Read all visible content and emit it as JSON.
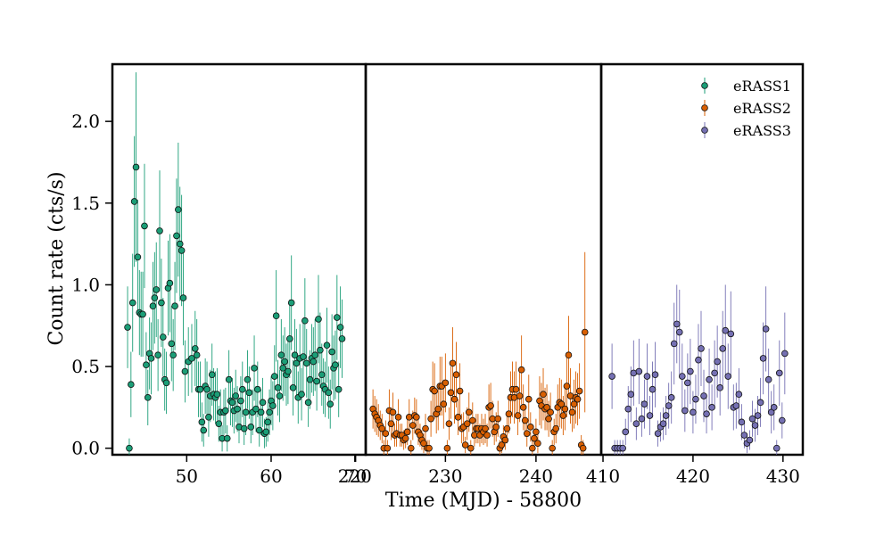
{
  "chart_data": {
    "type": "scatter",
    "xlabel": "Time (MJD) - 58800",
    "ylabel": "Count rate (cts/s)",
    "ylim": [
      -0.04,
      2.35
    ],
    "yticks": [
      0.0,
      0.5,
      1.0,
      1.5,
      2.0
    ],
    "ytick_labels": [
      "0.0",
      "0.5",
      "1.0",
      "1.5",
      "2.0"
    ],
    "legend_position": "top-right",
    "grid": false,
    "error_bars": "vertical",
    "panels": [
      {
        "xlim": [
          41.2,
          71.2
        ],
        "xticks": [
          50,
          60,
          70
        ],
        "xtick_labels": [
          "50",
          "60",
          "70"
        ]
      },
      {
        "xlim": [
          221.2,
          247.2
        ],
        "xticks": [
          220,
          230,
          240
        ],
        "xtick_labels": [
          "220",
          "230",
          "240"
        ]
      },
      {
        "xlim": [
          409.8,
          432.2
        ],
        "xticks": [
          410,
          420,
          430
        ],
        "xtick_labels": [
          "410",
          "420",
          "430"
        ]
      }
    ],
    "series": [
      {
        "name": "eRASS1",
        "color": "#1b9e77",
        "panel": 0,
        "x": [
          43.0,
          43.2,
          43.4,
          43.6,
          43.8,
          44.0,
          44.2,
          44.4,
          44.6,
          44.8,
          45.0,
          45.2,
          45.4,
          45.6,
          45.8,
          46.0,
          46.2,
          46.4,
          46.6,
          46.8,
          47.0,
          47.2,
          47.4,
          47.6,
          47.8,
          48.0,
          48.2,
          48.4,
          48.6,
          48.8,
          49.0,
          49.2,
          49.4,
          49.6,
          49.8,
          50.2,
          50.6,
          51.0,
          51.2,
          51.4,
          51.6,
          51.8,
          52.0,
          52.2,
          52.4,
          52.6,
          52.8,
          53.0,
          53.2,
          53.4,
          53.6,
          53.8,
          54.0,
          54.2,
          54.4,
          54.6,
          54.8,
          55.0,
          55.2,
          55.4,
          55.6,
          55.8,
          56.0,
          56.2,
          56.4,
          56.6,
          56.8,
          57.0,
          57.2,
          57.4,
          57.6,
          57.8,
          58.0,
          58.2,
          58.4,
          58.6,
          58.8,
          59.0,
          59.2,
          59.4,
          59.6,
          59.8,
          60.0,
          60.2,
          60.4,
          60.6,
          60.8,
          61.0,
          61.2,
          61.4,
          61.6,
          61.8,
          62.0,
          62.2,
          62.4,
          62.6,
          62.8,
          63.0,
          63.2,
          63.4,
          63.6,
          63.8,
          64.0,
          64.2,
          64.4,
          64.6,
          64.8,
          65.0,
          65.2,
          65.4,
          65.6,
          65.8,
          66.0,
          66.2,
          66.4,
          66.6,
          66.8,
          67.0,
          67.2,
          67.4,
          67.6,
          67.8,
          68.0,
          68.2,
          68.4
        ],
        "y": [
          0.74,
          0.0,
          0.39,
          0.89,
          1.51,
          1.72,
          1.17,
          0.83,
          0.82,
          0.82,
          1.36,
          0.51,
          0.31,
          0.58,
          0.55,
          0.87,
          0.92,
          0.97,
          0.57,
          1.33,
          0.89,
          0.68,
          0.42,
          0.4,
          0.98,
          1.01,
          0.64,
          0.57,
          0.87,
          1.3,
          1.46,
          1.25,
          1.21,
          0.92,
          0.47,
          0.53,
          0.55,
          0.61,
          0.57,
          0.36,
          0.36,
          0.16,
          0.11,
          0.38,
          0.36,
          0.19,
          0.32,
          0.45,
          0.33,
          0.31,
          0.33,
          0.15,
          0.22,
          0.06,
          0.22,
          0.23,
          0.06,
          0.42,
          0.29,
          0.28,
          0.23,
          0.32,
          0.24,
          0.13,
          0.29,
          0.36,
          0.12,
          0.22,
          0.42,
          0.34,
          0.13,
          0.22,
          0.49,
          0.24,
          0.36,
          0.11,
          0.22,
          0.28,
          0.09,
          0.1,
          0.16,
          0.22,
          0.29,
          0.26,
          0.44,
          0.81,
          0.37,
          0.32,
          0.57,
          0.49,
          0.53,
          0.45,
          0.47,
          0.67,
          0.89,
          0.37,
          0.57,
          0.52,
          0.31,
          0.55,
          0.33,
          0.56,
          0.78,
          0.52,
          0.28,
          0.42,
          0.55,
          0.53,
          0.57,
          0.41,
          0.79,
          0.6,
          0.45,
          0.38,
          0.36,
          0.63,
          0.34,
          0.27,
          0.59,
          0.49,
          0.51,
          0.8,
          0.36,
          0.74,
          0.67
        ],
        "yerr": [
          0.25,
          0.06,
          0.2,
          0.3,
          0.4,
          0.58,
          0.35,
          0.26,
          0.26,
          0.26,
          0.38,
          0.2,
          0.17,
          0.22,
          0.22,
          0.27,
          0.28,
          0.29,
          0.22,
          0.37,
          0.27,
          0.24,
          0.19,
          0.19,
          0.29,
          0.3,
          0.23,
          0.22,
          0.27,
          0.35,
          0.41,
          0.35,
          0.34,
          0.29,
          0.19,
          0.21,
          0.21,
          0.23,
          0.22,
          0.17,
          0.17,
          0.12,
          0.1,
          0.17,
          0.17,
          0.12,
          0.16,
          0.19,
          0.16,
          0.16,
          0.16,
          0.11,
          0.14,
          0.08,
          0.14,
          0.14,
          0.08,
          0.18,
          0.15,
          0.15,
          0.14,
          0.16,
          0.14,
          0.1,
          0.15,
          0.17,
          0.1,
          0.14,
          0.18,
          0.16,
          0.1,
          0.14,
          0.2,
          0.14,
          0.17,
          0.1,
          0.14,
          0.15,
          0.09,
          0.09,
          0.12,
          0.14,
          0.15,
          0.15,
          0.19,
          0.28,
          0.17,
          0.16,
          0.22,
          0.2,
          0.21,
          0.19,
          0.2,
          0.24,
          0.29,
          0.17,
          0.22,
          0.21,
          0.16,
          0.21,
          0.16,
          0.22,
          0.26,
          0.21,
          0.15,
          0.18,
          0.21,
          0.21,
          0.22,
          0.18,
          0.27,
          0.23,
          0.19,
          0.17,
          0.17,
          0.23,
          0.16,
          0.15,
          0.23,
          0.2,
          0.21,
          0.26,
          0.17,
          0.25,
          0.24
        ]
      },
      {
        "name": "eRASS2",
        "color": "#d95f02",
        "panel": 1,
        "x": [
          222.0,
          222.2,
          222.4,
          222.6,
          222.8,
          223.0,
          223.2,
          223.4,
          223.6,
          223.8,
          224.0,
          224.2,
          224.4,
          224.6,
          224.8,
          225.0,
          225.2,
          225.4,
          225.6,
          225.8,
          226.0,
          226.2,
          226.4,
          226.6,
          226.8,
          227.0,
          227.2,
          227.4,
          227.6,
          227.8,
          228.0,
          228.2,
          228.4,
          228.6,
          228.8,
          229.0,
          229.2,
          229.4,
          229.6,
          229.8,
          230.0,
          230.2,
          230.4,
          230.6,
          230.8,
          231.0,
          231.2,
          231.4,
          231.6,
          231.8,
          232.0,
          232.2,
          232.4,
          232.6,
          232.8,
          233.0,
          233.2,
          233.4,
          233.6,
          233.8,
          234.0,
          234.2,
          234.4,
          234.6,
          234.8,
          235.0,
          235.2,
          235.4,
          235.6,
          235.8,
          236.0,
          236.2,
          236.4,
          236.6,
          236.8,
          237.0,
          237.2,
          237.4,
          237.6,
          237.8,
          238.0,
          238.2,
          238.4,
          238.6,
          238.8,
          239.0,
          239.2,
          239.4,
          239.6,
          239.8,
          240.0,
          240.2,
          240.4,
          240.6,
          240.8,
          241.0,
          241.2,
          241.4,
          241.6,
          241.8,
          242.0,
          242.2,
          242.4,
          242.6,
          242.8,
          243.0,
          243.2,
          243.4,
          243.6,
          243.8,
          244.0,
          244.2,
          244.4,
          244.6,
          244.8,
          245.0,
          245.2,
          245.4
        ],
        "y": [
          0.24,
          0.21,
          0.19,
          0.17,
          0.14,
          0.12,
          0.0,
          0.09,
          0.0,
          0.23,
          0.15,
          0.22,
          0.08,
          0.09,
          0.19,
          0.08,
          0.08,
          0.05,
          0.06,
          0.1,
          0.19,
          0.0,
          0.14,
          0.2,
          0.19,
          0.1,
          0.08,
          0.05,
          0.03,
          0.12,
          0.0,
          0.0,
          0.18,
          0.36,
          0.35,
          0.21,
          0.24,
          0.38,
          0.38,
          0.27,
          0.4,
          0.0,
          0.15,
          0.34,
          0.52,
          0.3,
          0.45,
          0.19,
          0.35,
          0.12,
          0.13,
          0.02,
          0.15,
          0.22,
          0.0,
          0.17,
          0.08,
          0.12,
          0.12,
          0.08,
          0.12,
          0.1,
          0.12,
          0.08,
          0.25,
          0.26,
          0.18,
          0.1,
          0.13,
          0.18,
          0.0,
          0.02,
          0.07,
          0.05,
          0.12,
          0.21,
          0.31,
          0.36,
          0.31,
          0.36,
          0.2,
          0.32,
          0.48,
          0.25,
          0.17,
          0.09,
          0.3,
          0.13,
          0.0,
          0.06,
          0.1,
          0.03,
          0.29,
          0.26,
          0.33,
          0.24,
          0.25,
          0.18,
          0.22,
          0.0,
          0.1,
          0.12,
          0.25,
          0.28,
          0.27,
          0.2,
          0.24,
          0.38,
          0.57,
          0.32,
          0.22,
          0.27,
          0.31,
          0.3,
          0.35,
          0.02,
          0.0,
          0.71
        ],
        "yerr": [
          0.12,
          0.11,
          0.11,
          0.1,
          0.09,
          0.09,
          0.05,
          0.08,
          0.05,
          0.13,
          0.1,
          0.12,
          0.07,
          0.08,
          0.11,
          0.07,
          0.07,
          0.06,
          0.06,
          0.08,
          0.11,
          0.05,
          0.09,
          0.11,
          0.11,
          0.08,
          0.07,
          0.06,
          0.06,
          0.09,
          0.05,
          0.05,
          0.11,
          0.17,
          0.17,
          0.12,
          0.13,
          0.18,
          0.18,
          0.15,
          0.18,
          0.05,
          0.1,
          0.16,
          0.22,
          0.15,
          0.2,
          0.11,
          0.17,
          0.09,
          0.09,
          0.05,
          0.1,
          0.12,
          0.05,
          0.11,
          0.07,
          0.09,
          0.09,
          0.07,
          0.09,
          0.08,
          0.09,
          0.07,
          0.14,
          0.14,
          0.11,
          0.08,
          0.09,
          0.11,
          0.05,
          0.05,
          0.07,
          0.06,
          0.09,
          0.12,
          0.16,
          0.17,
          0.16,
          0.17,
          0.12,
          0.16,
          0.21,
          0.14,
          0.1,
          0.08,
          0.15,
          0.09,
          0.05,
          0.06,
          0.08,
          0.06,
          0.15,
          0.14,
          0.16,
          0.13,
          0.14,
          0.11,
          0.12,
          0.05,
          0.08,
          0.09,
          0.14,
          0.15,
          0.15,
          0.12,
          0.13,
          0.19,
          0.24,
          0.17,
          0.12,
          0.15,
          0.16,
          0.16,
          0.17,
          0.06,
          0.05,
          0.49
        ]
      },
      {
        "name": "eRASS3",
        "color": "#7570b3",
        "panel": 2,
        "x": [
          411.0,
          411.3,
          411.6,
          411.9,
          412.2,
          412.5,
          412.8,
          413.1,
          413.4,
          413.7,
          414.0,
          414.3,
          414.6,
          414.9,
          415.2,
          415.5,
          415.8,
          416.1,
          416.4,
          416.7,
          417.0,
          417.3,
          417.6,
          417.9,
          418.2,
          418.5,
          418.8,
          419.1,
          419.4,
          419.7,
          420.0,
          420.3,
          420.6,
          420.9,
          421.2,
          421.5,
          421.8,
          422.1,
          422.4,
          422.7,
          423.0,
          423.3,
          423.6,
          423.9,
          424.2,
          424.5,
          424.8,
          425.1,
          425.4,
          425.7,
          426.0,
          426.3,
          426.6,
          426.9,
          427.2,
          427.5,
          427.8,
          428.1,
          428.4,
          428.7,
          429.0,
          429.3,
          429.6,
          429.9,
          430.2
        ],
        "y": [
          0.44,
          0.0,
          0.0,
          0.0,
          0.0,
          0.1,
          0.24,
          0.33,
          0.46,
          0.15,
          0.47,
          0.18,
          0.27,
          0.44,
          0.2,
          0.36,
          0.45,
          0.09,
          0.13,
          0.15,
          0.2,
          0.26,
          0.31,
          0.64,
          0.76,
          0.71,
          0.44,
          0.23,
          0.4,
          0.47,
          0.22,
          0.3,
          0.54,
          0.61,
          0.32,
          0.21,
          0.42,
          0.25,
          0.46,
          0.53,
          0.37,
          0.61,
          0.72,
          0.44,
          0.7,
          0.25,
          0.26,
          0.33,
          0.16,
          0.08,
          0.03,
          0.05,
          0.18,
          0.14,
          0.2,
          0.28,
          0.55,
          0.73,
          0.42,
          0.22,
          0.25,
          0.0,
          0.46,
          0.17,
          0.58
        ],
        "yerr": [
          0.2,
          0.05,
          0.05,
          0.05,
          0.05,
          0.08,
          0.14,
          0.17,
          0.2,
          0.1,
          0.2,
          0.11,
          0.15,
          0.2,
          0.12,
          0.17,
          0.2,
          0.08,
          0.09,
          0.1,
          0.12,
          0.14,
          0.16,
          0.25,
          0.24,
          0.26,
          0.2,
          0.13,
          0.18,
          0.2,
          0.13,
          0.15,
          0.22,
          0.23,
          0.16,
          0.12,
          0.19,
          0.14,
          0.2,
          0.22,
          0.17,
          0.23,
          0.28,
          0.2,
          0.26,
          0.14,
          0.14,
          0.16,
          0.11,
          0.08,
          0.06,
          0.06,
          0.11,
          0.1,
          0.12,
          0.15,
          0.22,
          0.26,
          0.19,
          0.13,
          0.14,
          0.05,
          0.2,
          0.11,
          0.25
        ]
      }
    ]
  }
}
